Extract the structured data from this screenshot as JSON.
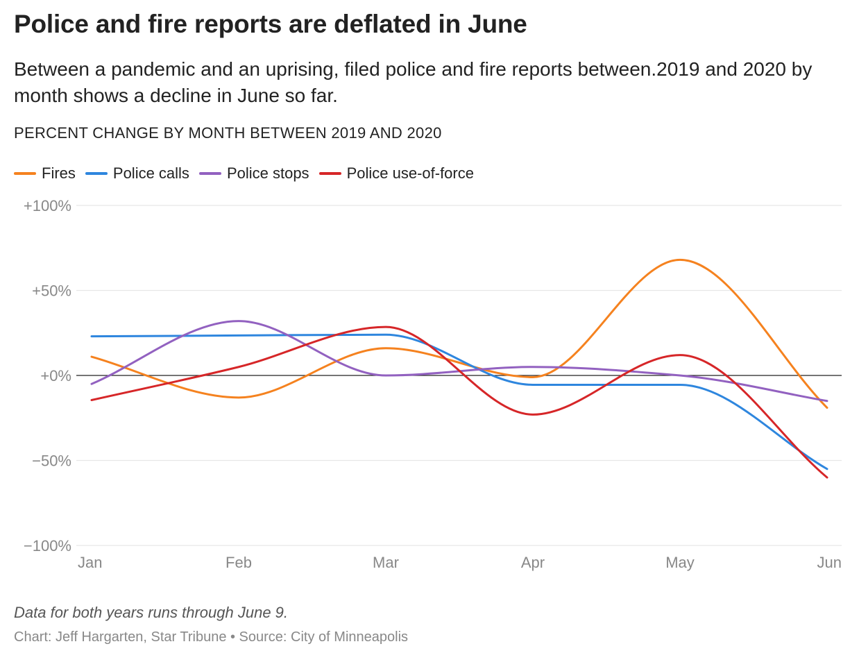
{
  "title": "Police and fire reports are deflated in June",
  "subtitle": "Between a pandemic and an uprising, filed police and fire reports between.2019 and 2020 by month shows a decline in June so far.",
  "chart_label": "PERCENT CHANGE BY MONTH BETWEEN 2019 AND 2020",
  "note": "Data for both years runs through June 9.",
  "credit": "Chart: Jeff Hargarten, Star Tribune • Source: City of Minneapolis",
  "chart_data": {
    "type": "line",
    "title": "Police and fire reports are deflated in June",
    "subtitle": "Between a pandemic and an uprising, filed police and fire reports between.2019 and 2020 by month shows a decline in June so far.",
    "ylabel": "PERCENT CHANGE BY MONTH BETWEEN 2019 AND 2020",
    "xlabel": "",
    "categories": [
      "Jan",
      "Feb",
      "Mar",
      "Apr",
      "May",
      "Jun"
    ],
    "ylim": [
      -100,
      100
    ],
    "yticks": [
      100,
      50,
      0,
      -50,
      -100
    ],
    "ytick_labels": [
      "+100%",
      "+50%",
      "+0%",
      "−50%",
      "−100%"
    ],
    "grid": true,
    "legend_position": "top-left",
    "series": [
      {
        "name": "Fires",
        "color": "#f5821f",
        "values": [
          11,
          -13,
          16,
          -1,
          68,
          -19
        ]
      },
      {
        "name": "Police calls",
        "color": "#2e86de",
        "values": [
          23,
          23.5,
          24,
          -5.5,
          -5.5,
          -55
        ]
      },
      {
        "name": "Police stops",
        "color": "#9261c0",
        "values": [
          -5,
          32,
          0,
          5,
          0,
          -15
        ]
      },
      {
        "name": "Police use-of-force",
        "color": "#d62628",
        "values": [
          -14.5,
          5,
          28.5,
          -23,
          12,
          -60
        ]
      }
    ]
  }
}
